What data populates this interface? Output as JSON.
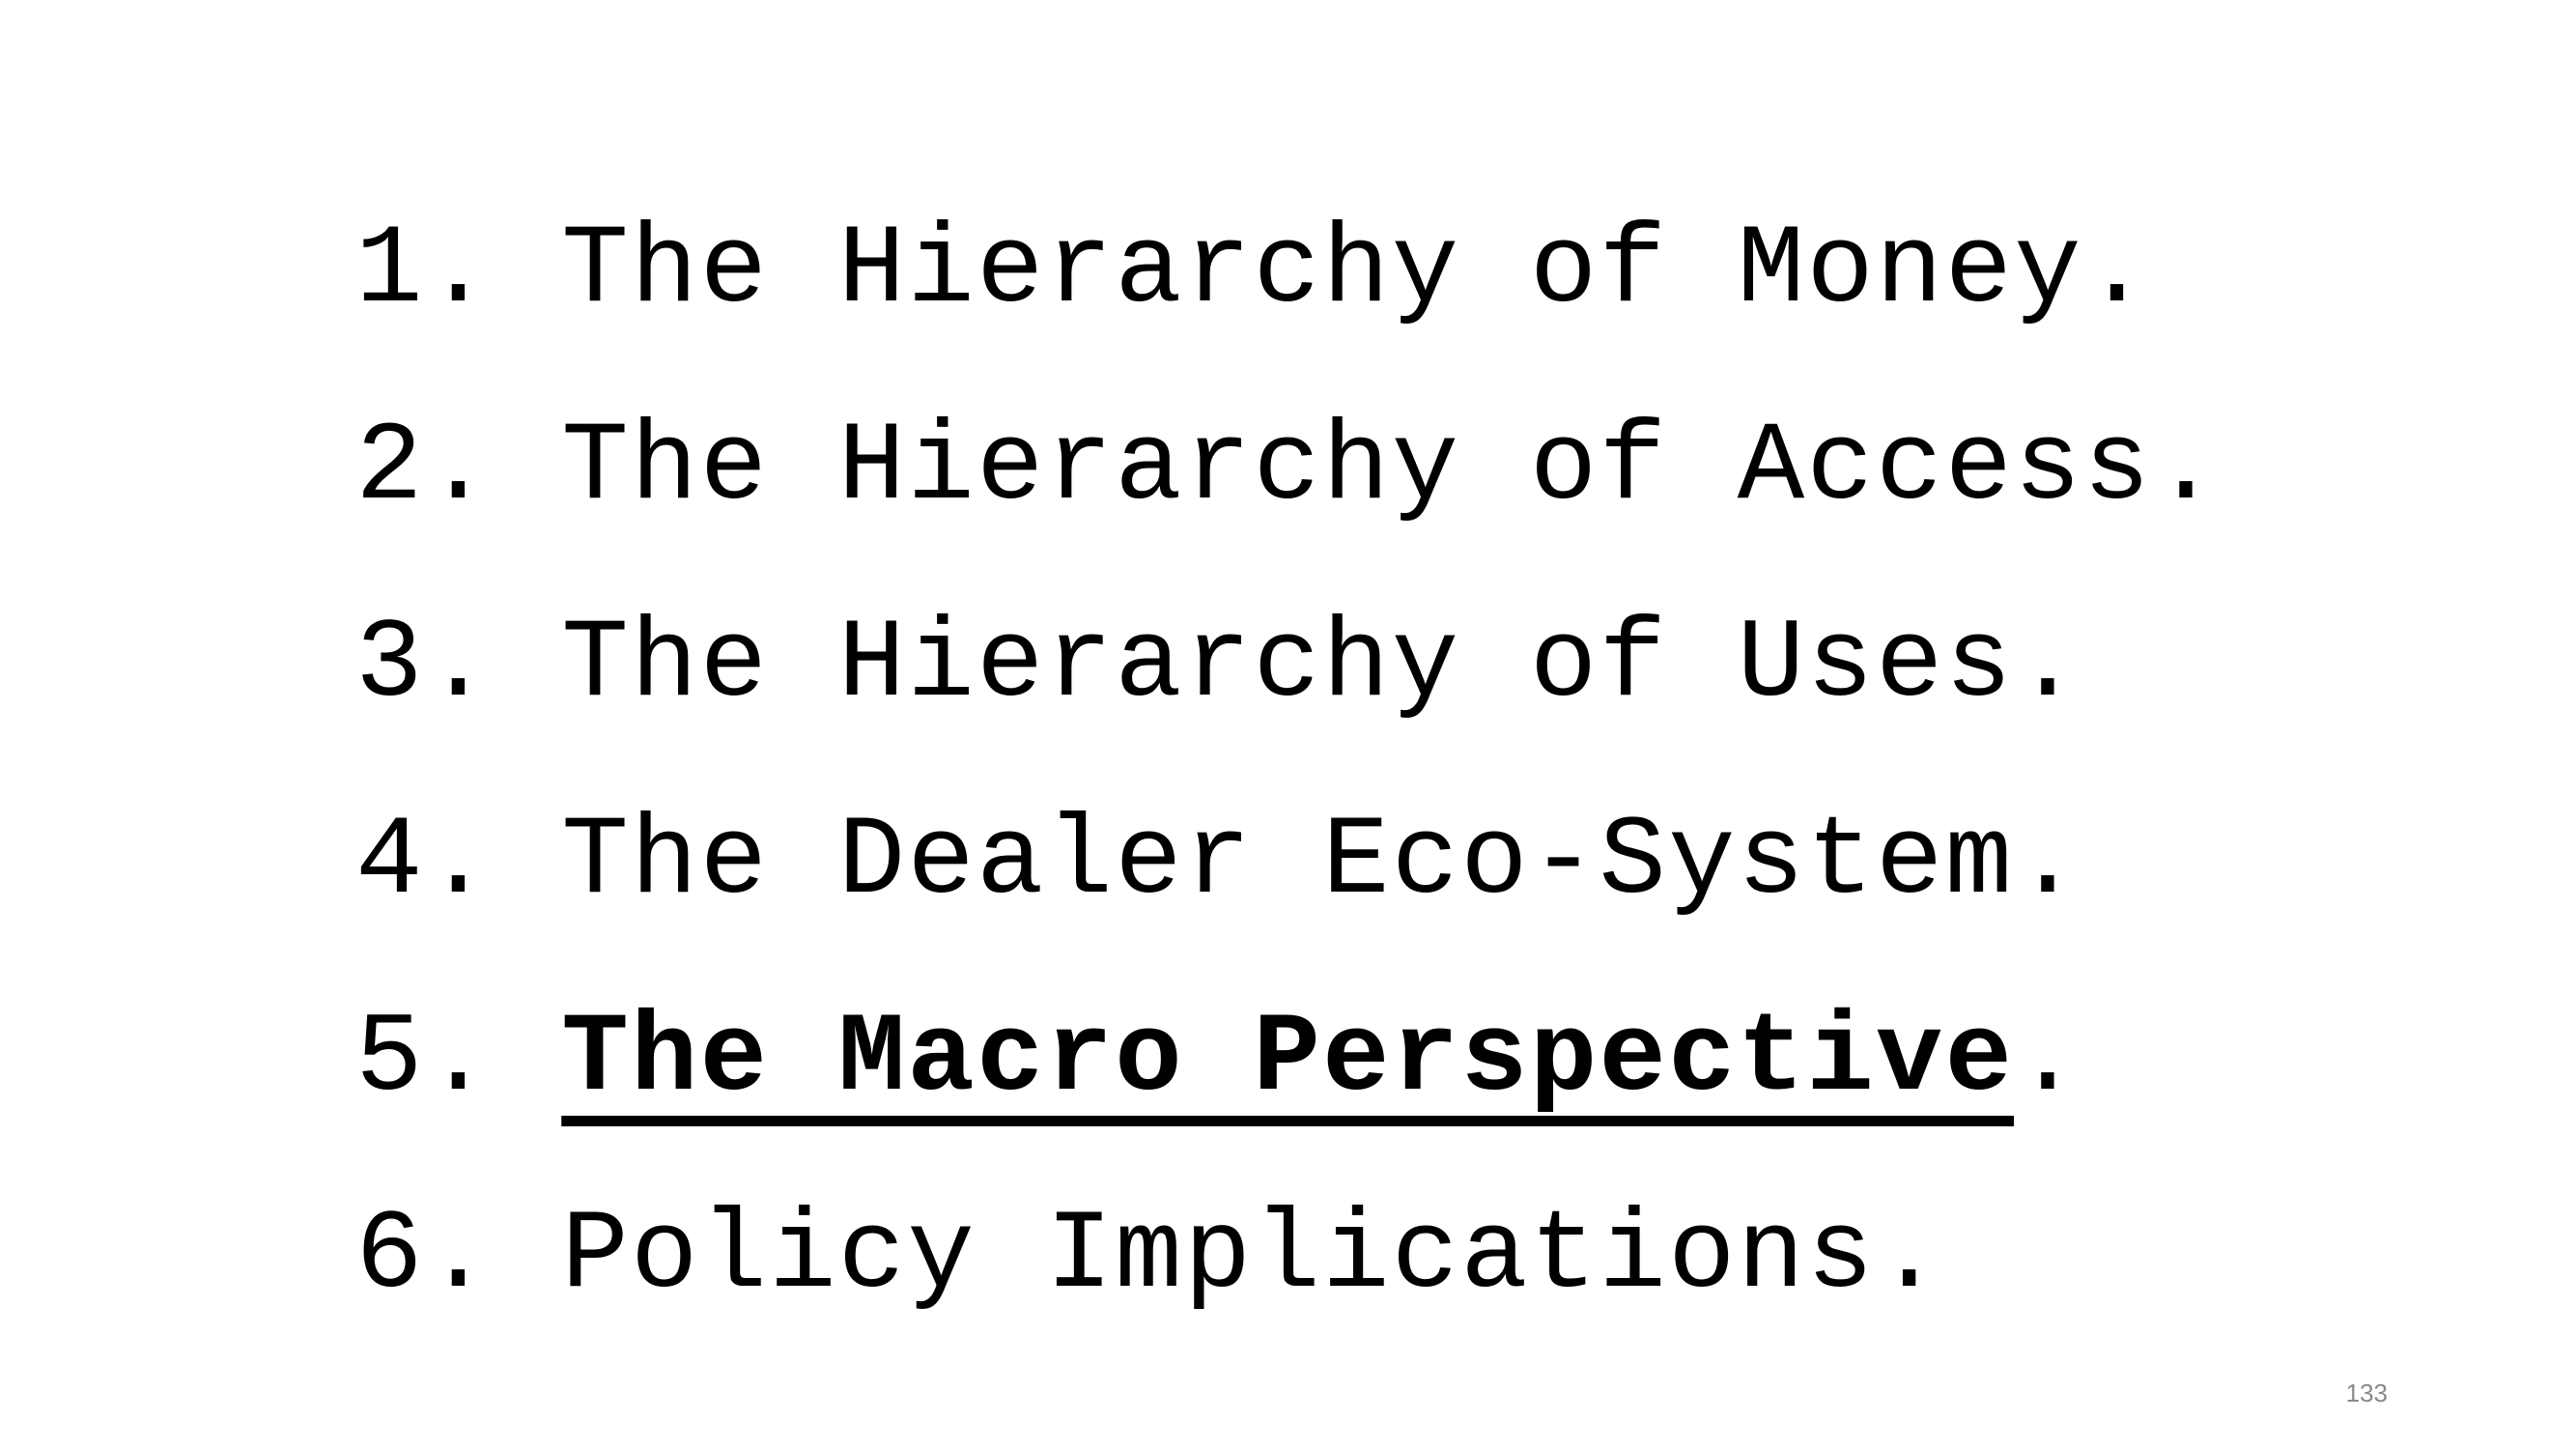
{
  "agenda": {
    "items": [
      {
        "number": "1.",
        "label": "The Hierarchy of Money",
        "suffix": "."
      },
      {
        "number": "2.",
        "label": "The Hierarchy of Access",
        "suffix": "."
      },
      {
        "number": "3.",
        "label": "The Hierarchy of Uses",
        "suffix": "."
      },
      {
        "number": "4.",
        "label": "The Dealer Eco-System",
        "suffix": "."
      },
      {
        "number": "5.",
        "label": "The Macro Perspective",
        "suffix": "."
      },
      {
        "number": "6.",
        "label": "Policy Implications",
        "suffix": "."
      }
    ],
    "current_item": "5."
  },
  "slide": {
    "number": "133"
  }
}
